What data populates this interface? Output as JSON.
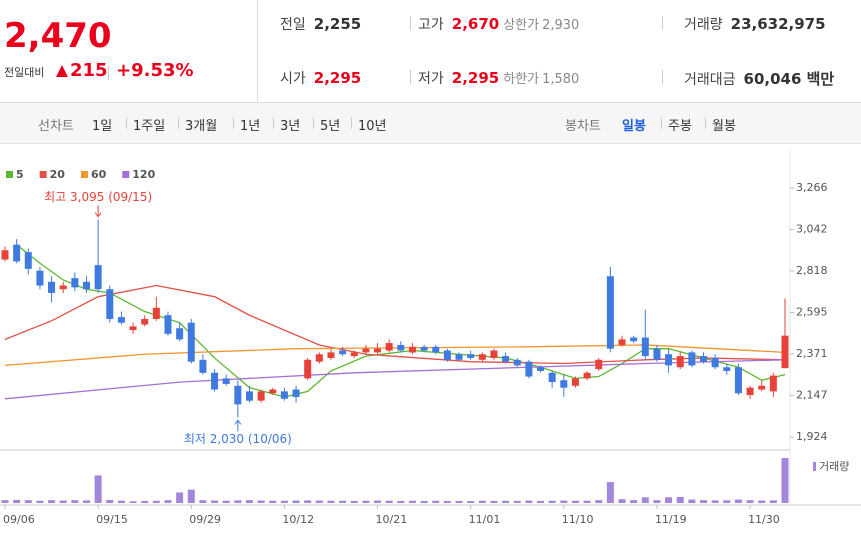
{
  "header": {
    "price": "2,470",
    "change_label": "전일대비",
    "change": "215",
    "change_rate": "+9.53%",
    "stats": [
      {
        "label": "전일",
        "value": "2,255"
      },
      {
        "label": "고가",
        "value": "2,670",
        "note_label": "상한가",
        "note_value": "2,930"
      },
      {
        "label": "거래량",
        "value": "23,632,975"
      },
      {
        "label": "시가",
        "value": "2,295"
      },
      {
        "label": "저가",
        "value": "2,295",
        "note_label": "하한가",
        "note_value": "1,580"
      },
      {
        "label": "거래대금",
        "value": "60,046 백만"
      }
    ]
  },
  "toolbar": {
    "line_label": "선차트",
    "line_periods": [
      "1일",
      "1주일",
      "3개월",
      "1년",
      "3년",
      "5년",
      "10년"
    ],
    "candle_label": "봉차트",
    "candle_periods": [
      "일봉",
      "주봉",
      "월봉"
    ],
    "selected": "일봉"
  },
  "chart_data": {
    "type": "candlestick",
    "categories": [
      "09/06",
      null,
      null,
      null,
      null,
      null,
      null,
      null,
      "09/15",
      null,
      null,
      null,
      null,
      null,
      null,
      null,
      "09/29",
      null,
      null,
      null,
      null,
      null,
      null,
      null,
      "10/12",
      null,
      null,
      null,
      null,
      null,
      null,
      null,
      "10/21",
      null,
      null,
      null,
      null,
      null,
      null,
      null,
      "11/01",
      null,
      null,
      null,
      null,
      null,
      null,
      null,
      "11/10",
      null,
      null,
      null,
      null,
      null,
      null,
      null,
      "11/19",
      null,
      null,
      null,
      null,
      null,
      null,
      null,
      "11/30",
      null,
      null,
      null
    ],
    "open": [
      2880,
      2960,
      2920,
      2820,
      2760,
      2720,
      2780,
      2760,
      2850,
      2720,
      2570,
      2500,
      2530,
      2560,
      2580,
      2510,
      2540,
      2340,
      2270,
      2240,
      2200,
      2170,
      2120,
      2160,
      2170,
      2180,
      2240,
      2330,
      2350,
      2390,
      2360,
      2380,
      2380,
      2390,
      2420,
      2380,
      2410,
      2410,
      2390,
      2370,
      2370,
      2340,
      2350,
      2360,
      2340,
      2330,
      2300,
      2270,
      2230,
      2200,
      2240,
      2290,
      2790,
      2420,
      2460,
      2460,
      2400,
      2370,
      2300,
      2380,
      2360,
      2350,
      2300,
      2300,
      2150,
      2180,
      2170,
      2295
    ],
    "high": [
      2950,
      2990,
      2940,
      2840,
      2790,
      2760,
      2810,
      2790,
      3095,
      2740,
      2600,
      2540,
      2580,
      2680,
      2600,
      2540,
      2560,
      2370,
      2290,
      2260,
      2230,
      2200,
      2180,
      2190,
      2190,
      2200,
      2350,
      2380,
      2400,
      2410,
      2390,
      2420,
      2430,
      2450,
      2440,
      2430,
      2420,
      2420,
      2400,
      2380,
      2390,
      2380,
      2400,
      2380,
      2350,
      2340,
      2310,
      2280,
      2260,
      2250,
      2280,
      2350,
      2840,
      2470,
      2470,
      2610,
      2420,
      2400,
      2380,
      2390,
      2380,
      2370,
      2320,
      2320,
      2200,
      2230,
      2270,
      2670
    ],
    "low": [
      2870,
      2860,
      2800,
      2720,
      2650,
      2700,
      2710,
      2700,
      2700,
      2540,
      2530,
      2480,
      2520,
      2550,
      2470,
      2440,
      2320,
      2260,
      2170,
      2200,
      2030,
      2110,
      2110,
      2150,
      2120,
      2110,
      2230,
      2320,
      2340,
      2360,
      2350,
      2370,
      2370,
      2380,
      2380,
      2370,
      2380,
      2370,
      2330,
      2330,
      2340,
      2330,
      2340,
      2320,
      2300,
      2240,
      2270,
      2190,
      2140,
      2190,
      2230,
      2280,
      2380,
      2410,
      2430,
      2340,
      2330,
      2270,
      2290,
      2300,
      2320,
      2290,
      2260,
      2150,
      2130,
      2170,
      2140,
      2295
    ],
    "close": [
      2930,
      2870,
      2830,
      2740,
      2700,
      2740,
      2730,
      2720,
      2720,
      2560,
      2540,
      2520,
      2560,
      2620,
      2480,
      2450,
      2330,
      2270,
      2180,
      2210,
      2100,
      2120,
      2170,
      2180,
      2130,
      2140,
      2340,
      2370,
      2380,
      2370,
      2380,
      2400,
      2400,
      2430,
      2390,
      2410,
      2390,
      2380,
      2340,
      2340,
      2350,
      2370,
      2390,
      2330,
      2310,
      2250,
      2280,
      2220,
      2190,
      2240,
      2270,
      2340,
      2400,
      2450,
      2440,
      2360,
      2340,
      2310,
      2360,
      2310,
      2330,
      2300,
      2280,
      2160,
      2190,
      2200,
      2255,
      2470
    ],
    "up_color": "#e8413a",
    "down_color": "#3f7ae0",
    "volume": {
      "name": "거래량",
      "color": "#a386dc",
      "values": [
        1500000,
        1600000,
        1500000,
        1200000,
        1500000,
        1300000,
        1500000,
        1400000,
        14500000,
        1600000,
        1200000,
        900000,
        1100000,
        1200000,
        1500000,
        5500000,
        7000000,
        1500000,
        1300000,
        1200000,
        1400000,
        1500000,
        1300000,
        1200000,
        1200000,
        1300000,
        1400000,
        1300000,
        1200000,
        1200000,
        1100000,
        1200000,
        1300000,
        1200000,
        1100000,
        1200000,
        1100000,
        1200000,
        1100000,
        1100000,
        1000000,
        1200000,
        1100000,
        1200000,
        1100000,
        1300000,
        1100000,
        1200000,
        1300000,
        1200000,
        1200000,
        1500000,
        11000000,
        2000000,
        1500000,
        3000000,
        1500000,
        3000000,
        3200000,
        1800000,
        1500000,
        1400000,
        1400000,
        1800000,
        1500000,
        1300000,
        1400000,
        23632975
      ]
    },
    "moving_averages": [
      {
        "name": "5",
        "color": "#5cb82e",
        "x": [
          1,
          3,
          5,
          7,
          9,
          12,
          15,
          18,
          21,
          24,
          26,
          28,
          31,
          35,
          39,
          43,
          46,
          49,
          51,
          53,
          55,
          57,
          60,
          63,
          65,
          67
        ],
        "values": [
          2960,
          2860,
          2770,
          2720,
          2700,
          2600,
          2540,
          2350,
          2190,
          2140,
          2170,
          2280,
          2360,
          2390,
          2370,
          2350,
          2300,
          2240,
          2250,
          2320,
          2400,
          2400,
          2350,
          2300,
          2230,
          2260
        ]
      },
      {
        "name": "20",
        "color": "#e0534a",
        "x": [
          0,
          4,
          8,
          13,
          18,
          21,
          24,
          27,
          31,
          40,
          48,
          55,
          60,
          67
        ],
        "values": [
          2450,
          2550,
          2680,
          2740,
          2680,
          2580,
          2500,
          2420,
          2370,
          2330,
          2320,
          2340,
          2350,
          2340
        ]
      },
      {
        "name": "60",
        "color": "#f0962f",
        "x": [
          0,
          12,
          25,
          45,
          55,
          67
        ],
        "values": [
          2310,
          2370,
          2400,
          2410,
          2420,
          2380
        ]
      },
      {
        "name": "120",
        "color": "#a66fd6",
        "x": [
          0,
          15,
          30,
          45,
          55,
          67
        ],
        "values": [
          2130,
          2220,
          2270,
          2300,
          2320,
          2340
        ]
      }
    ],
    "ylim": [
      1865,
      3470
    ],
    "yticks": [
      {
        "value": 1924,
        "label": "1,924"
      },
      {
        "value": 2147,
        "label": "2,147"
      },
      {
        "value": 2371,
        "label": "2,371"
      },
      {
        "value": 2595,
        "label": "2,595"
      },
      {
        "value": 2818,
        "label": "2,818"
      },
      {
        "value": 3042,
        "label": "3,042"
      },
      {
        "value": 3266,
        "label": "3,266"
      }
    ],
    "annotations": [
      {
        "text": "최고 3,095 (09/15)",
        "index": 8,
        "value": 3095
      },
      {
        "text": "최저 2,030 (10/06)",
        "index": 20,
        "value": 2030
      }
    ],
    "grid": false
  }
}
